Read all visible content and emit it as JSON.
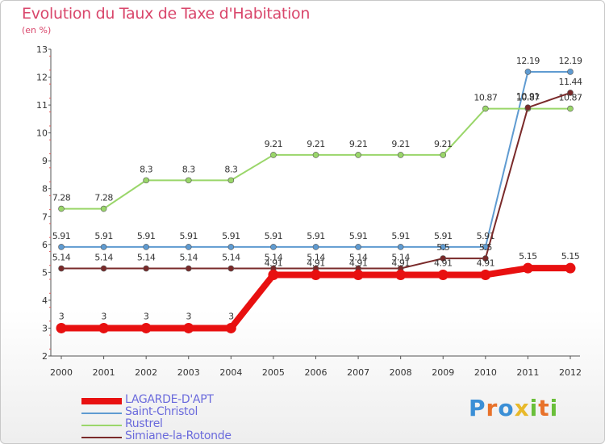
{
  "header": {
    "title": "Evolution du Taux de Taxe d'Habitation",
    "unit": "(en %)"
  },
  "brand": {
    "text": "Proxiti",
    "colors": [
      "#3b8fd6",
      "#e8722a",
      "#3b8fd6",
      "#e8b92a",
      "#6abf3a",
      "#e8722a",
      "#6abf3a"
    ]
  },
  "chart_data": {
    "type": "line",
    "title": "Evolution du Taux de Taxe d'Habitation",
    "ylabel": "(en %)",
    "xlabel": "",
    "x": [
      "2000",
      "2001",
      "2002",
      "2003",
      "2004",
      "2005",
      "2006",
      "2007",
      "2008",
      "2009",
      "2010",
      "2011",
      "2012"
    ],
    "ylim": [
      2,
      13
    ],
    "yticks": [
      "2",
      "3",
      "4",
      "5",
      "6",
      "7",
      "8",
      "9",
      "10",
      "11",
      "12",
      "13"
    ],
    "grid": false,
    "legend_position": "bottom-left",
    "series": [
      {
        "name": "Saint-Christol",
        "color": "#5f9bd1",
        "values": [
          5.91,
          5.91,
          5.91,
          5.91,
          5.91,
          5.91,
          5.91,
          5.91,
          5.91,
          5.91,
          5.91,
          12.19,
          12.19
        ],
        "labels": [
          "5.91",
          "5.91",
          "5.91",
          "5.91",
          "5.91",
          "5.91",
          "5.91",
          "5.91",
          "5.91",
          "5.91",
          "5.91",
          "12.19",
          "12.19"
        ]
      },
      {
        "name": "Rustrel",
        "color": "#9ad66a",
        "values": [
          7.28,
          7.28,
          8.3,
          8.3,
          8.3,
          9.21,
          9.21,
          9.21,
          9.21,
          9.21,
          10.87,
          10.87,
          10.87
        ],
        "labels": [
          "7.28",
          "7.28",
          "8.3",
          "8.3",
          "8.3",
          "9.21",
          "9.21",
          "9.21",
          "9.21",
          "9.21",
          "10.87",
          "10.87",
          "10.87"
        ]
      },
      {
        "name": "Simiane-la-Rotonde",
        "color": "#7a2a2a",
        "values": [
          5.14,
          5.14,
          5.14,
          5.14,
          5.14,
          5.14,
          5.14,
          5.14,
          5.14,
          5.5,
          5.5,
          10.91,
          11.44
        ],
        "labels": [
          "5.14",
          "5.14",
          "5.14",
          "5.14",
          "5.14",
          "5.14",
          "5.14",
          "5.14",
          "5.14",
          "5.5",
          "5.5",
          "10.91",
          "11.44"
        ]
      },
      {
        "name": "LAGARDE-D'APT",
        "color": "#e81010",
        "values": [
          3,
          3,
          3,
          3,
          3,
          4.91,
          4.91,
          4.91,
          4.91,
          4.91,
          4.91,
          5.15,
          5.15
        ],
        "labels": [
          "3",
          "3",
          "3",
          "3",
          "3",
          "4.91",
          "4.91",
          "4.91",
          "4.91",
          "4.91",
          "4.91",
          "5.15",
          "5.15"
        ]
      }
    ]
  },
  "legend": [
    {
      "label": "LAGARDE-D'APT",
      "color": "#e81010"
    },
    {
      "label": "Saint-Christol",
      "color": "#5f9bd1"
    },
    {
      "label": "Rustrel",
      "color": "#9ad66a"
    },
    {
      "label": "Simiane-la-Rotonde",
      "color": "#7a2a2a"
    }
  ]
}
